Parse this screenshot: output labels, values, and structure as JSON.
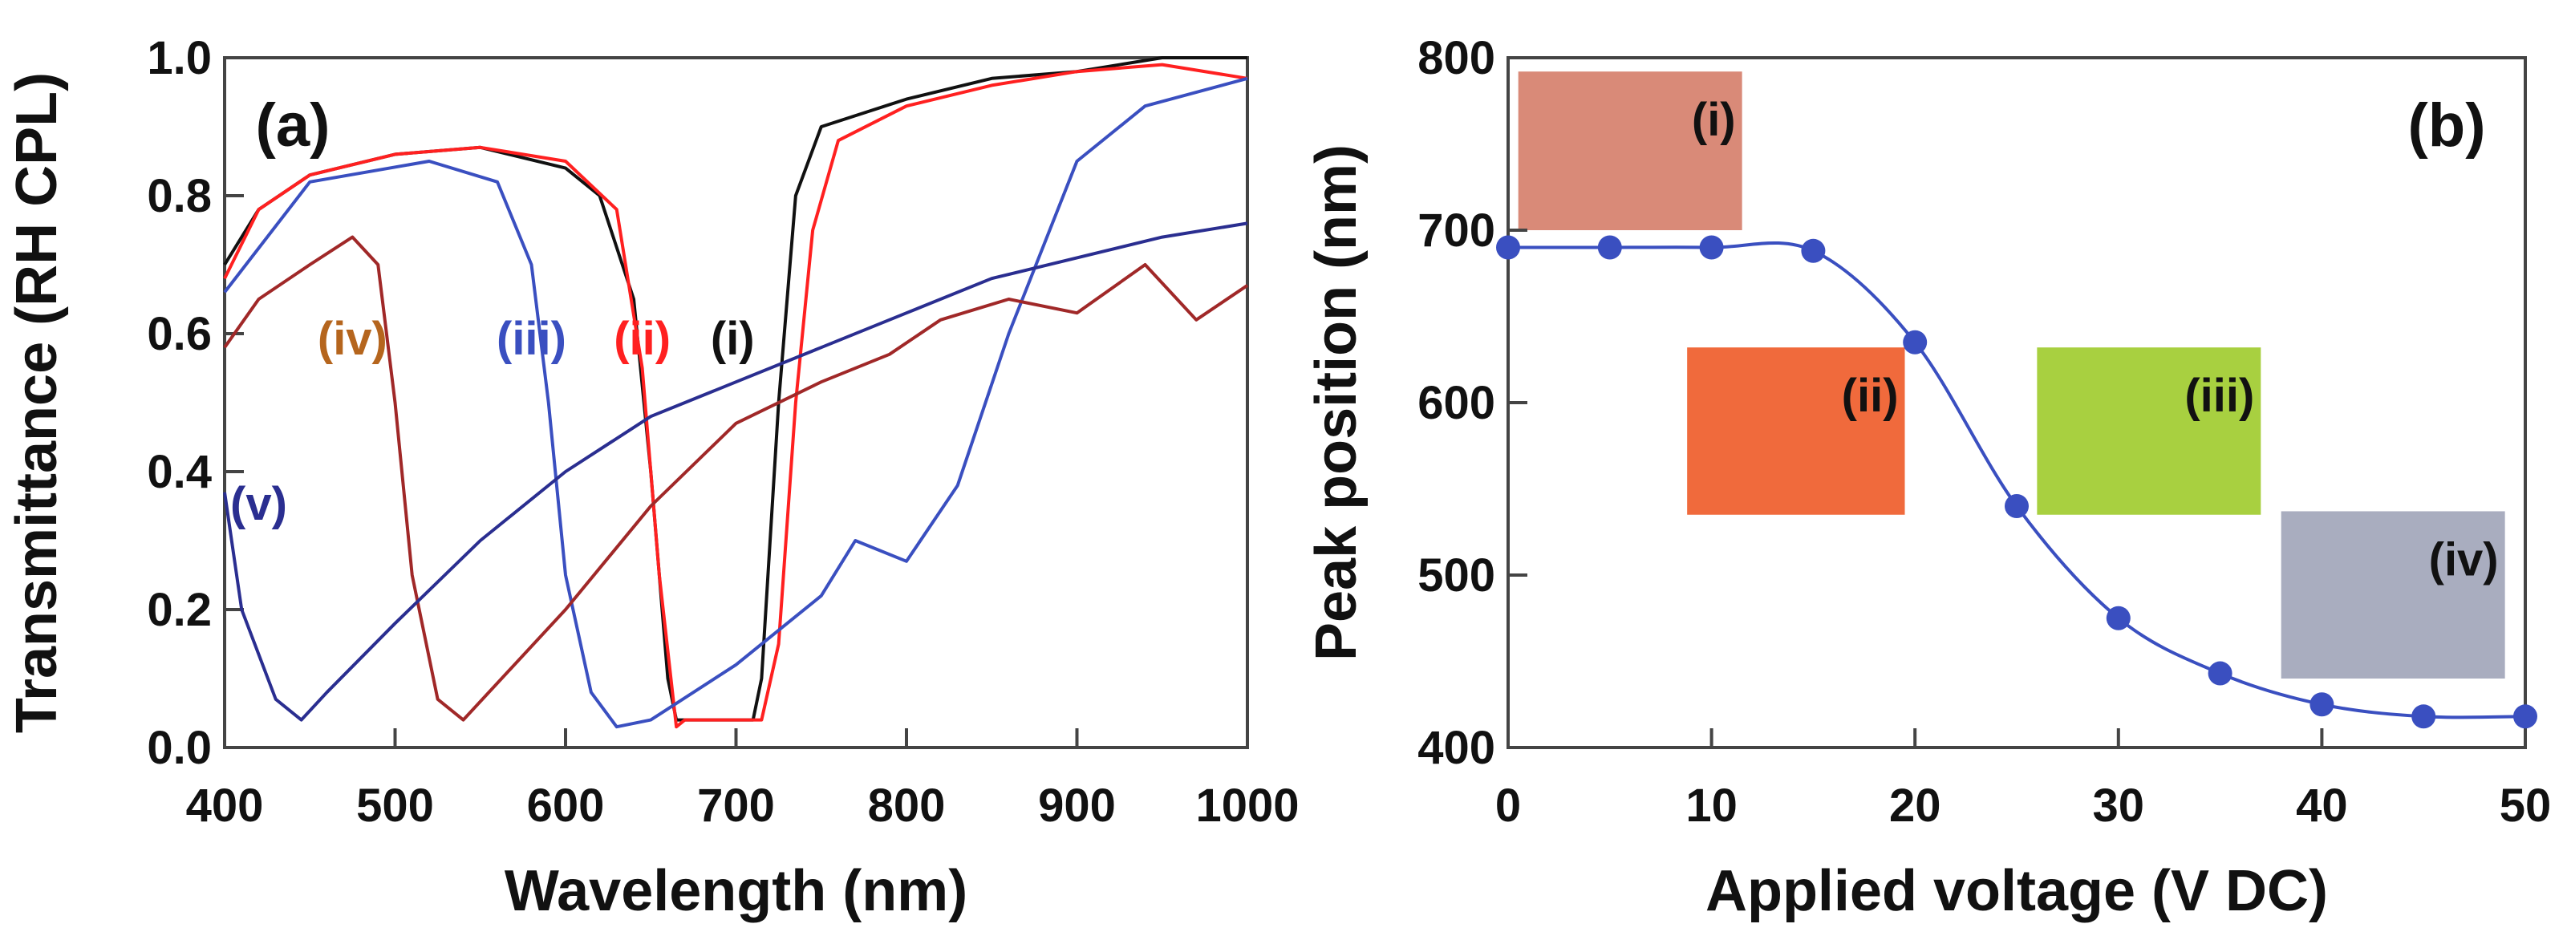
{
  "chart_data": [
    {
      "type": "line",
      "panel_label": "(a)",
      "xlabel": "Wavelength (nm)",
      "ylabel": "Transmittance (RH CPL)",
      "xlim": [
        400,
        1000
      ],
      "ylim": [
        0,
        1.0
      ],
      "xticks": [
        "400",
        "500",
        "600",
        "700",
        "800",
        "900",
        "1000"
      ],
      "yticks": [
        "0.0",
        "0.2",
        "0.4",
        "0.6",
        "0.8",
        "1.0"
      ],
      "series": [
        {
          "name": "(i)",
          "color": "#111111",
          "x": [
            400,
            420,
            450,
            500,
            550,
            600,
            620,
            640,
            650,
            660,
            665,
            710,
            715,
            725,
            735,
            750,
            800,
            850,
            900,
            950,
            1000
          ],
          "y": [
            0.7,
            0.78,
            0.83,
            0.86,
            0.87,
            0.84,
            0.8,
            0.65,
            0.4,
            0.1,
            0.04,
            0.04,
            0.1,
            0.5,
            0.8,
            0.9,
            0.94,
            0.97,
            0.98,
            1.0,
            1.0
          ]
        },
        {
          "name": "(ii)",
          "color": "#ff2020",
          "x": [
            400,
            420,
            450,
            500,
            550,
            600,
            630,
            645,
            655,
            665,
            670,
            715,
            725,
            735,
            745,
            760,
            800,
            850,
            900,
            950,
            1000
          ],
          "y": [
            0.68,
            0.78,
            0.83,
            0.86,
            0.87,
            0.85,
            0.78,
            0.55,
            0.25,
            0.03,
            0.04,
            0.04,
            0.15,
            0.5,
            0.75,
            0.88,
            0.93,
            0.96,
            0.98,
            0.99,
            0.97
          ]
        },
        {
          "name": "(iii)",
          "color": "#3a4fc0",
          "x": [
            400,
            450,
            520,
            560,
            580,
            590,
            600,
            615,
            630,
            650,
            700,
            750,
            770,
            800,
            830,
            860,
            900,
            940,
            1000
          ],
          "y": [
            0.66,
            0.82,
            0.85,
            0.82,
            0.7,
            0.5,
            0.25,
            0.08,
            0.03,
            0.04,
            0.12,
            0.22,
            0.3,
            0.27,
            0.38,
            0.6,
            0.85,
            0.93,
            0.97
          ]
        },
        {
          "name": "(iv)",
          "color": "#a02828",
          "x": [
            400,
            420,
            450,
            475,
            490,
            500,
            510,
            525,
            540,
            600,
            650,
            700,
            750,
            790,
            820,
            860,
            900,
            940,
            970,
            1000
          ],
          "y": [
            0.58,
            0.65,
            0.7,
            0.74,
            0.7,
            0.5,
            0.25,
            0.07,
            0.04,
            0.2,
            0.35,
            0.47,
            0.53,
            0.57,
            0.62,
            0.65,
            0.63,
            0.7,
            0.62,
            0.67
          ]
        },
        {
          "name": "(v)",
          "color": "#2a2e90",
          "x": [
            400,
            410,
            430,
            445,
            460,
            500,
            550,
            600,
            650,
            700,
            750,
            800,
            850,
            900,
            950,
            1000
          ],
          "y": [
            0.37,
            0.2,
            0.07,
            0.04,
            0.08,
            0.18,
            0.3,
            0.4,
            0.48,
            0.53,
            0.58,
            0.63,
            0.68,
            0.71,
            0.74,
            0.76
          ]
        }
      ],
      "annotations": [
        {
          "text": "(iv)",
          "color": "#b5651d",
          "x": 475,
          "y": 0.57
        },
        {
          "text": "(iii)",
          "color": "#3a4fc0",
          "x": 580,
          "y": 0.57
        },
        {
          "text": "(ii)",
          "color": "#ff2020",
          "x": 645,
          "y": 0.57
        },
        {
          "text": "(i)",
          "color": "#111111",
          "x": 698,
          "y": 0.57
        },
        {
          "text": "(v)",
          "color": "#2a2e90",
          "x": 420,
          "y": 0.33
        }
      ]
    },
    {
      "type": "line",
      "panel_label": "(b)",
      "xlabel": "Applied voltage (V DC)",
      "ylabel": "Peak position (nm)",
      "xlim": [
        0,
        50
      ],
      "ylim": [
        400,
        800
      ],
      "xticks": [
        "0",
        "10",
        "20",
        "30",
        "40",
        "50"
      ],
      "yticks": [
        "400",
        "500",
        "600",
        "700",
        "800"
      ],
      "series": [
        {
          "name": "Peak position",
          "color": "#3a4fc0",
          "x": [
            0,
            5,
            10,
            15,
            20,
            25,
            30,
            35,
            40,
            45,
            50
          ],
          "y": [
            690,
            690,
            690,
            688,
            635,
            540,
            475,
            443,
            425,
            418,
            418
          ]
        }
      ],
      "insets": [
        {
          "label": "(i)",
          "color": "#d98a78",
          "x": [
            0.5,
            11.5
          ],
          "y": [
            700,
            792
          ]
        },
        {
          "label": "(ii)",
          "color": "#f06a3c",
          "x": [
            8.8,
            19.5
          ],
          "y": [
            535,
            632
          ]
        },
        {
          "label": "(iii)",
          "color": "#a8d040",
          "x": [
            26,
            37
          ],
          "y": [
            535,
            632
          ]
        },
        {
          "label": "(iv)",
          "color": "#a9adbf",
          "x": [
            38,
            49
          ],
          "y": [
            440,
            537
          ]
        }
      ]
    }
  ]
}
